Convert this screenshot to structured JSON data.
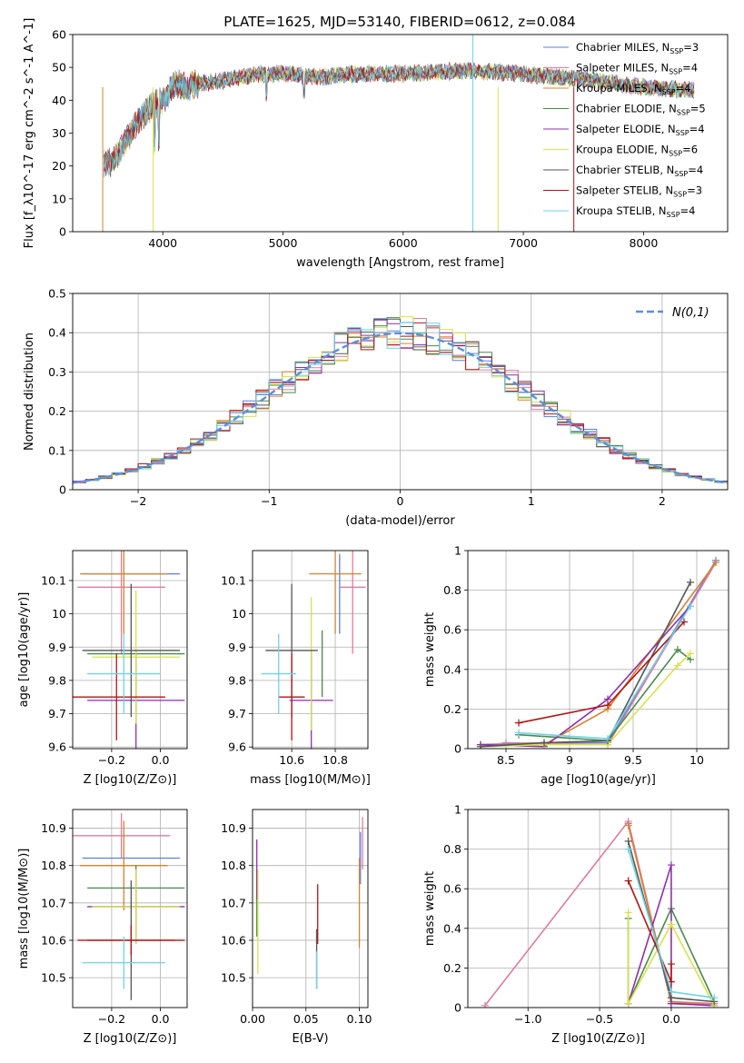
{
  "figure": {
    "title": "PLATE=1625, MJD=53140, FIBERID=0612, z=0.084"
  },
  "chart_data": [
    {
      "id": "spectrum",
      "type": "line",
      "xlabel": "wavelength [Angstrom, rest frame]",
      "ylabel": "Flux [f_λ10^-17 erg cm^-2 s^-1 A^-1]",
      "xlim": [
        3250,
        8700
      ],
      "ylim": [
        0,
        60
      ],
      "xticks": [
        4000,
        5000,
        6000,
        7000,
        8000
      ],
      "yticks": [
        0,
        10,
        20,
        30,
        40,
        50,
        60
      ],
      "legend_position": "upper-right",
      "continuum": {
        "x": [
          3500,
          3600,
          3700,
          3800,
          3900,
          4000,
          4100,
          4200,
          4300,
          4500,
          4800,
          5000,
          5300,
          5600,
          6000,
          6500,
          7000,
          7300,
          7600,
          8000,
          8400
        ],
        "y": [
          20,
          22,
          28,
          34,
          38,
          40,
          45,
          44,
          45,
          46,
          48,
          48,
          47,
          48,
          48,
          49,
          48,
          47,
          46,
          44,
          43
        ]
      },
      "series": [
        {
          "name": "Chabrier MILES",
          "nssp": "3",
          "color": "#5b7fe0"
        },
        {
          "name": "Salpeter MILES",
          "nssp": "4",
          "color": "#e07ba0"
        },
        {
          "name": "Kroupa MILES",
          "nssp": "4",
          "color": "#d9822b"
        },
        {
          "name": "Chabrier ELODIE",
          "nssp": "5",
          "color": "#4a8a4a"
        },
        {
          "name": "Salpeter ELODIE",
          "nssp": "4",
          "color": "#8e2fae"
        },
        {
          "name": "Kroupa ELODIE",
          "nssp": "6",
          "color": "#d6e24a"
        },
        {
          "name": "Chabrier STELIB",
          "nssp": "4",
          "color": "#555555"
        },
        {
          "name": "Salpeter STELIB",
          "nssp": "3",
          "color": "#b01515"
        },
        {
          "name": "Kroupa STELIB",
          "nssp": "4",
          "color": "#6fd3e6"
        }
      ]
    },
    {
      "id": "residuals",
      "type": "histogram",
      "xlabel": "(data-model)/error",
      "ylabel": "Normed distribution",
      "xlim": [
        -2.5,
        2.5
      ],
      "ylim": [
        0,
        0.5
      ],
      "xticks": [
        -2,
        -1,
        0,
        1,
        2
      ],
      "xtick_labels": [
        "−2",
        "−1",
        "0",
        "1",
        "2"
      ],
      "yticks": [
        0,
        0.1,
        0.2,
        0.3,
        0.4,
        0.5
      ],
      "grid": true,
      "legend_position": "upper-right",
      "reference": {
        "name": "N(0,1)",
        "mean": 0,
        "sigma": 1,
        "color": "#5b8fd9"
      },
      "bin_width": 0.1
    },
    {
      "id": "age_vs_Z",
      "type": "errorbar",
      "xlabel": "Z [log10(Z/Z⊙)]",
      "ylabel": "age [log10(age/yr)]",
      "xlim": [
        -0.36,
        0.11
      ],
      "ylim": [
        9.595,
        10.19
      ],
      "xticks": [
        -0.2,
        0.0
      ],
      "xtick_labels": [
        "−0.2",
        "0.0"
      ],
      "yticks": [
        9.6,
        9.7,
        9.8,
        9.9,
        10.0,
        10.1
      ],
      "grid": true,
      "points": [
        {
          "series": 0,
          "x": -0.12,
          "xerr": 0.2,
          "y": 10.12,
          "yerr": 0.0
        },
        {
          "series": 1,
          "x": -0.16,
          "xerr": 0.18,
          "y": 10.08,
          "yerr": 0.2
        },
        {
          "series": 2,
          "x": -0.15,
          "xerr": 0.18,
          "y": 10.12,
          "yerr": 0.18
        },
        {
          "series": 3,
          "x": -0.1,
          "xerr": 0.2,
          "y": 9.88,
          "yerr": 0.0
        },
        {
          "series": 4,
          "x": -0.1,
          "xerr": 0.2,
          "y": 9.74,
          "yerr": 0.15
        },
        {
          "series": 5,
          "x": -0.1,
          "xerr": 0.18,
          "y": 9.87,
          "yerr": 0.2
        },
        {
          "series": 6,
          "x": -0.12,
          "xerr": 0.2,
          "y": 9.89,
          "yerr": 0.2
        },
        {
          "series": 7,
          "x": -0.18,
          "xerr": 0.2,
          "y": 9.75,
          "yerr": 0.13
        },
        {
          "series": 8,
          "x": -0.15,
          "xerr": 0.15,
          "y": 9.82,
          "yerr": 0.12
        }
      ]
    },
    {
      "id": "age_vs_mass",
      "type": "errorbar",
      "xlabel": "mass [log10(M/M⊙)]",
      "ylabel": "",
      "xlim": [
        10.42,
        10.95
      ],
      "ylim": [
        9.595,
        10.19
      ],
      "xticks": [
        10.6,
        10.8
      ],
      "yticks": [
        9.6,
        9.7,
        9.8,
        9.9,
        10.0,
        10.1
      ],
      "grid": true,
      "points": [
        {
          "series": 0,
          "x": 10.82,
          "xerr": 0.0,
          "y": 10.06,
          "yerr": 0.12
        },
        {
          "series": 1,
          "x": 10.88,
          "xerr": 0.06,
          "y": 10.08,
          "yerr": 0.2
        },
        {
          "series": 2,
          "x": 10.8,
          "xerr": 0.12,
          "y": 10.12,
          "yerr": 0.18
        },
        {
          "series": 3,
          "x": 10.74,
          "xerr": 0.0,
          "y": 9.85,
          "yerr": 0.1
        },
        {
          "series": 4,
          "x": 10.69,
          "xerr": 0.1,
          "y": 9.74,
          "yerr": 0.15
        },
        {
          "series": 5,
          "x": 10.69,
          "xerr": 0.0,
          "y": 9.85,
          "yerr": 0.2
        },
        {
          "series": 6,
          "x": 10.6,
          "xerr": 0.12,
          "y": 9.89,
          "yerr": 0.2
        },
        {
          "series": 7,
          "x": 10.6,
          "xerr": 0.06,
          "y": 9.75,
          "yerr": 0.13
        },
        {
          "series": 8,
          "x": 10.54,
          "xerr": 0.08,
          "y": 9.82,
          "yerr": 0.12
        }
      ]
    },
    {
      "id": "weight_vs_age",
      "type": "line",
      "xlabel": "age [log10(age/yr)]",
      "ylabel": "mass weight",
      "xlim": [
        8.2,
        10.25
      ],
      "ylim": [
        0,
        1
      ],
      "xticks": [
        8.5,
        9.0,
        9.5,
        10.0
      ],
      "yticks": [
        0,
        0.2,
        0.4,
        0.6,
        0.8,
        1.0
      ],
      "grid": true,
      "series": [
        {
          "index": 0,
          "x": [
            8.3,
            8.8,
            9.3,
            10.15
          ],
          "y": [
            0.02,
            0.03,
            0.03,
            0.95
          ]
        },
        {
          "index": 1,
          "x": [
            8.3,
            8.5,
            9.3,
            10.15
          ],
          "y": [
            0.01,
            0.03,
            0.02,
            0.94
          ]
        },
        {
          "index": 2,
          "x": [
            8.3,
            8.8,
            9.3,
            10.15
          ],
          "y": [
            0.01,
            0.02,
            0.2,
            0.94
          ]
        },
        {
          "index": 3,
          "x": [
            8.6,
            9.3,
            9.85,
            9.95
          ],
          "y": [
            0.07,
            0.04,
            0.5,
            0.45
          ]
        },
        {
          "index": 4,
          "x": [
            8.3,
            8.8,
            9.3,
            9.95
          ],
          "y": [
            0.02,
            0.01,
            0.25,
            0.72
          ]
        },
        {
          "index": 5,
          "x": [
            8.3,
            8.8,
            9.3,
            9.85,
            9.95
          ],
          "y": [
            0.01,
            0.02,
            0.02,
            0.42,
            0.48
          ]
        },
        {
          "index": 6,
          "x": [
            8.3,
            8.8,
            9.3,
            9.95
          ],
          "y": [
            0.01,
            0.03,
            0.04,
            0.84
          ]
        },
        {
          "index": 7,
          "x": [
            8.6,
            9.3,
            9.9
          ],
          "y": [
            0.13,
            0.22,
            0.64
          ]
        },
        {
          "index": 8,
          "x": [
            8.6,
            9.3,
            9.95
          ],
          "y": [
            0.08,
            0.05,
            0.72
          ]
        }
      ]
    },
    {
      "id": "mass_vs_Z",
      "type": "errorbar",
      "xlabel": "Z [log10(Z/Z⊙)]",
      "ylabel": "mass [log10(M/M⊙)]",
      "xlim": [
        -0.36,
        0.11
      ],
      "ylim": [
        10.42,
        10.95
      ],
      "xticks": [
        -0.2,
        0.0
      ],
      "xtick_labels": [
        "−0.2",
        "0.0"
      ],
      "yticks": [
        10.5,
        10.6,
        10.7,
        10.8,
        10.9
      ],
      "grid": true,
      "points": [
        {
          "series": 0,
          "x": -0.12,
          "xerr": 0.2,
          "y": 10.82,
          "yerr": 0.0
        },
        {
          "series": 1,
          "x": -0.16,
          "xerr": 0.2,
          "y": 10.88,
          "yerr": 0.06
        },
        {
          "series": 2,
          "x": -0.15,
          "xerr": 0.18,
          "y": 10.8,
          "yerr": 0.12
        },
        {
          "series": 3,
          "x": -0.1,
          "xerr": 0.2,
          "y": 10.74,
          "yerr": 0.06
        },
        {
          "series": 4,
          "x": -0.1,
          "xerr": 0.2,
          "y": 10.69,
          "yerr": 0.1
        },
        {
          "series": 5,
          "x": -0.1,
          "xerr": 0.18,
          "y": 10.69,
          "yerr": 0.1
        },
        {
          "series": 6,
          "x": -0.12,
          "xerr": 0.18,
          "y": 10.6,
          "yerr": 0.16
        },
        {
          "series": 7,
          "x": -0.12,
          "xerr": 0.22,
          "y": 10.6,
          "yerr": 0.04
        },
        {
          "series": 8,
          "x": -0.15,
          "xerr": 0.17,
          "y": 10.54,
          "yerr": 0.07
        }
      ]
    },
    {
      "id": "mass_vs_ebv",
      "type": "errorbar",
      "xlabel": "E(B-V)",
      "ylabel": "",
      "xlim": [
        0.0,
        0.108
      ],
      "ylim": [
        10.42,
        10.95
      ],
      "xticks": [
        0.0,
        0.05,
        0.1
      ],
      "xtick_labels": [
        "0.00",
        "0.05",
        "0.10"
      ],
      "yticks": [
        10.5,
        10.6,
        10.7,
        10.8,
        10.9
      ],
      "grid": true,
      "points": [
        {
          "series": 0,
          "x": 0.101,
          "y": 10.82,
          "yerr": 0.07
        },
        {
          "series": 1,
          "x": 0.103,
          "y": 10.86,
          "yerr": 0.07
        },
        {
          "series": 2,
          "x": 0.1,
          "y": 10.7,
          "yerr": 0.12
        },
        {
          "series": 3,
          "x": 0.004,
          "y": 10.7,
          "yerr": 0.09
        },
        {
          "series": 4,
          "x": 0.004,
          "y": 10.79,
          "yerr": 0.08
        },
        {
          "series": 5,
          "x": 0.005,
          "y": 10.65,
          "yerr": 0.14
        },
        {
          "series": 6,
          "x": 0.06,
          "y": 10.55,
          "yerr": 0.08
        },
        {
          "series": 7,
          "x": 0.061,
          "y": 10.67,
          "yerr": 0.08
        },
        {
          "series": 8,
          "x": 0.06,
          "y": 10.52,
          "yerr": 0.05
        }
      ]
    },
    {
      "id": "weight_vs_Z",
      "type": "line",
      "xlabel": "Z [log10(Z/Z⊙)]",
      "ylabel": "mass weight",
      "xlim": [
        -1.42,
        0.4
      ],
      "ylim": [
        0,
        1
      ],
      "xticks": [
        -1.0,
        -0.5,
        0.0
      ],
      "xtick_labels": [
        "−1.0",
        "−0.5",
        "0.0"
      ],
      "yticks": [
        0,
        0.2,
        0.4,
        0.6,
        0.8,
        1.0
      ],
      "grid": true,
      "series": [
        {
          "index": 0,
          "x": [
            -0.3,
            0.0,
            0.3
          ],
          "y": [
            0.93,
            0.02,
            0.02
          ]
        },
        {
          "index": 1,
          "x": [
            -1.3,
            -0.3,
            0.0,
            0.3
          ],
          "y": [
            0.01,
            0.94,
            0.03,
            0.02
          ]
        },
        {
          "index": 2,
          "x": [
            -0.3,
            0.0,
            0.3
          ],
          "y": [
            0.92,
            0.03,
            0.01
          ]
        },
        {
          "index": 3,
          "x": [
            -0.3,
            -0.3,
            0.0,
            0.3
          ],
          "y": [
            0.45,
            0.02,
            0.5,
            0.03
          ]
        },
        {
          "index": 4,
          "x": [
            -0.3,
            0.0,
            0.0,
            0.3
          ],
          "y": [
            0.02,
            0.72,
            0.02,
            0.01
          ]
        },
        {
          "index": 5,
          "x": [
            -0.3,
            -0.3,
            0.0,
            0.3
          ],
          "y": [
            0.48,
            0.02,
            0.42,
            0.01
          ]
        },
        {
          "index": 6,
          "x": [
            -0.3,
            0.0,
            0.3
          ],
          "y": [
            0.84,
            0.05,
            0.03
          ]
        },
        {
          "index": 7,
          "x": [
            -0.3,
            0.0,
            0.0
          ],
          "y": [
            0.64,
            0.13,
            0.22
          ]
        },
        {
          "index": 8,
          "x": [
            -0.3,
            0.0,
            0.3
          ],
          "y": [
            0.8,
            0.08,
            0.05
          ]
        }
      ]
    }
  ]
}
